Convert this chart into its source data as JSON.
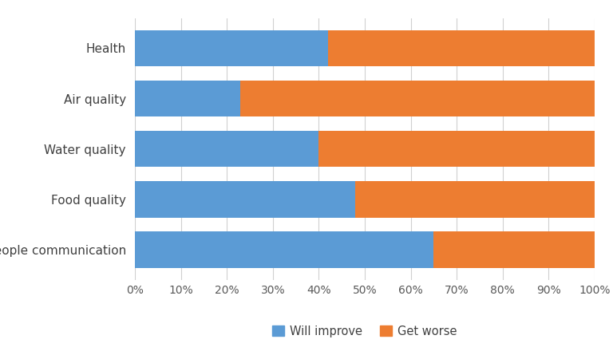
{
  "categories": [
    "People communication",
    "Food quality",
    "Water quality",
    "Air quality",
    "Health"
  ],
  "will_improve": [
    65,
    48,
    40,
    23,
    42
  ],
  "get_worse": [
    35,
    52,
    60,
    77,
    58
  ],
  "color_improve": "#5B9BD5",
  "color_worse": "#ED7D31",
  "legend_labels": [
    "Will improve",
    "Get worse"
  ],
  "x_ticks": [
    0,
    10,
    20,
    30,
    40,
    50,
    60,
    70,
    80,
    90,
    100
  ],
  "x_tick_labels": [
    "0%",
    "10%",
    "20%",
    "30%",
    "40%",
    "50%",
    "60%",
    "70%",
    "80%",
    "90%",
    "100%"
  ],
  "xlim": [
    0,
    100
  ],
  "background_color": "#ffffff",
  "bar_height": 0.72,
  "tick_fontsize": 10,
  "legend_fontsize": 10.5,
  "y_label_fontsize": 11
}
